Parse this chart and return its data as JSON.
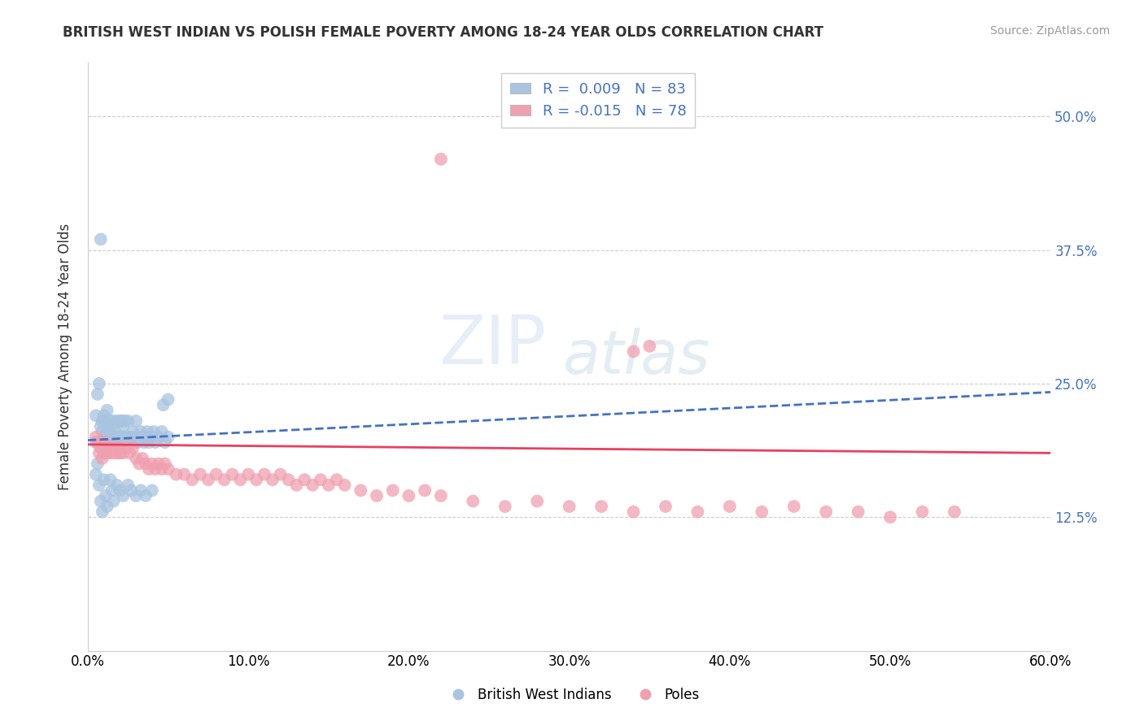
{
  "title": "BRITISH WEST INDIAN VS POLISH FEMALE POVERTY AMONG 18-24 YEAR OLDS CORRELATION CHART",
  "source": "Source: ZipAtlas.com",
  "ylabel": "Female Poverty Among 18-24 Year Olds",
  "xlim": [
    0.0,
    0.6
  ],
  "ylim": [
    0.0,
    0.55
  ],
  "xtick_vals": [
    0.0,
    0.1,
    0.2,
    0.3,
    0.4,
    0.5,
    0.6
  ],
  "xtick_labels": [
    "0.0%",
    "10.0%",
    "20.0%",
    "30.0%",
    "40.0%",
    "50.0%",
    "60.0%"
  ],
  "ytick_labels": [
    "12.5%",
    "25.0%",
    "37.5%",
    "50.0%"
  ],
  "ytick_values": [
    0.125,
    0.25,
    0.375,
    0.5
  ],
  "blue_R": 0.009,
  "blue_N": 83,
  "pink_R": -0.015,
  "pink_N": 78,
  "blue_color": "#a8c4e0",
  "pink_color": "#f0a0b0",
  "blue_line_color": "#4472c4",
  "pink_line_color": "#e84060",
  "background_color": "#ffffff",
  "blue_trend_x0": 0.0,
  "blue_trend_y0": 0.197,
  "blue_trend_x1": 0.6,
  "blue_trend_y1": 0.242,
  "pink_trend_x0": 0.0,
  "pink_trend_y0": 0.193,
  "pink_trend_x1": 0.6,
  "pink_trend_y1": 0.185,
  "blue_x": [
    0.005,
    0.005,
    0.006,
    0.007,
    0.008,
    0.008,
    0.009,
    0.009,
    0.01,
    0.01,
    0.01,
    0.011,
    0.011,
    0.012,
    0.012,
    0.013,
    0.013,
    0.014,
    0.014,
    0.015,
    0.015,
    0.016,
    0.016,
    0.017,
    0.017,
    0.018,
    0.018,
    0.019,
    0.02,
    0.02,
    0.02,
    0.021,
    0.021,
    0.022,
    0.022,
    0.023,
    0.023,
    0.024,
    0.025,
    0.025,
    0.026,
    0.027,
    0.028,
    0.029,
    0.03,
    0.03,
    0.031,
    0.032,
    0.033,
    0.035,
    0.036,
    0.037,
    0.038,
    0.04,
    0.041,
    0.042,
    0.044,
    0.046,
    0.048,
    0.05,
    0.005,
    0.006,
    0.007,
    0.008,
    0.009,
    0.01,
    0.011,
    0.012,
    0.014,
    0.015,
    0.016,
    0.018,
    0.02,
    0.022,
    0.025,
    0.027,
    0.03,
    0.033,
    0.036,
    0.04,
    0.008,
    0.047,
    0.05
  ],
  "blue_y": [
    0.195,
    0.22,
    0.24,
    0.25,
    0.21,
    0.19,
    0.205,
    0.215,
    0.2,
    0.22,
    0.185,
    0.195,
    0.215,
    0.205,
    0.225,
    0.195,
    0.21,
    0.2,
    0.215,
    0.195,
    0.21,
    0.2,
    0.215,
    0.195,
    0.205,
    0.2,
    0.215,
    0.195,
    0.2,
    0.215,
    0.185,
    0.2,
    0.215,
    0.195,
    0.21,
    0.2,
    0.215,
    0.195,
    0.2,
    0.215,
    0.195,
    0.2,
    0.205,
    0.195,
    0.2,
    0.215,
    0.195,
    0.2,
    0.205,
    0.195,
    0.2,
    0.205,
    0.195,
    0.2,
    0.205,
    0.195,
    0.2,
    0.205,
    0.195,
    0.2,
    0.165,
    0.175,
    0.155,
    0.14,
    0.13,
    0.16,
    0.145,
    0.135,
    0.16,
    0.15,
    0.14,
    0.155,
    0.15,
    0.145,
    0.155,
    0.15,
    0.145,
    0.15,
    0.145,
    0.15,
    0.385,
    0.23,
    0.235
  ],
  "pink_x": [
    0.005,
    0.006,
    0.007,
    0.008,
    0.009,
    0.01,
    0.011,
    0.012,
    0.013,
    0.014,
    0.015,
    0.016,
    0.017,
    0.018,
    0.019,
    0.02,
    0.022,
    0.024,
    0.026,
    0.028,
    0.03,
    0.032,
    0.034,
    0.036,
    0.038,
    0.04,
    0.042,
    0.044,
    0.046,
    0.048,
    0.05,
    0.055,
    0.06,
    0.065,
    0.07,
    0.075,
    0.08,
    0.085,
    0.09,
    0.095,
    0.1,
    0.105,
    0.11,
    0.115,
    0.12,
    0.125,
    0.13,
    0.135,
    0.14,
    0.145,
    0.15,
    0.155,
    0.16,
    0.17,
    0.18,
    0.19,
    0.2,
    0.21,
    0.22,
    0.24,
    0.26,
    0.28,
    0.3,
    0.32,
    0.34,
    0.36,
    0.38,
    0.4,
    0.42,
    0.44,
    0.46,
    0.48,
    0.5,
    0.52,
    0.54,
    0.22,
    0.34,
    0.35
  ],
  "pink_y": [
    0.2,
    0.195,
    0.185,
    0.19,
    0.18,
    0.195,
    0.185,
    0.19,
    0.185,
    0.19,
    0.185,
    0.19,
    0.185,
    0.19,
    0.185,
    0.19,
    0.185,
    0.19,
    0.185,
    0.19,
    0.18,
    0.175,
    0.18,
    0.175,
    0.17,
    0.175,
    0.17,
    0.175,
    0.17,
    0.175,
    0.17,
    0.165,
    0.165,
    0.16,
    0.165,
    0.16,
    0.165,
    0.16,
    0.165,
    0.16,
    0.165,
    0.16,
    0.165,
    0.16,
    0.165,
    0.16,
    0.155,
    0.16,
    0.155,
    0.16,
    0.155,
    0.16,
    0.155,
    0.15,
    0.145,
    0.15,
    0.145,
    0.15,
    0.145,
    0.14,
    0.135,
    0.14,
    0.135,
    0.135,
    0.13,
    0.135,
    0.13,
    0.135,
    0.13,
    0.135,
    0.13,
    0.13,
    0.125,
    0.13,
    0.13,
    0.46,
    0.28,
    0.285
  ]
}
